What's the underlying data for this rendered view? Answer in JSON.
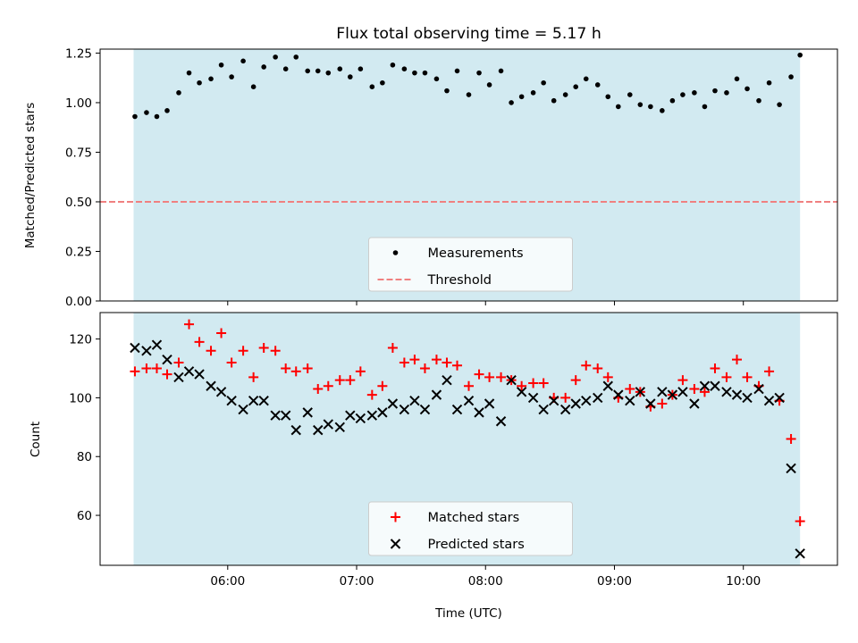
{
  "title": "Flux total observing time = 5.17 h",
  "colors": {
    "observing_span": "#add8e6",
    "measurement": "#000000",
    "threshold": "#f08080",
    "matched": "#ff0000",
    "predicted": "#000000"
  },
  "chart_data": [
    {
      "type": "scatter",
      "ylabel": "Matched/Predicted stars",
      "xlim": [
        5.01,
        10.73
      ],
      "ylim": [
        0,
        1.27
      ],
      "yticks": [
        0.0,
        0.25,
        0.5,
        0.75,
        1.0,
        1.25
      ],
      "ytick_labels": [
        "0.00",
        "0.25",
        "0.50",
        "0.75",
        "1.00",
        "1.25"
      ],
      "observing_span": [
        5.27,
        10.44
      ],
      "threshold": 0.5,
      "legend": {
        "placement": "lower-center",
        "entries": [
          "Measurements",
          "Threshold"
        ]
      },
      "series": [
        {
          "name": "Measurements",
          "marker": "dot",
          "x": [
            5.28,
            5.37,
            5.45,
            5.53,
            5.62,
            5.7,
            5.78,
            5.87,
            5.95,
            6.03,
            6.12,
            6.2,
            6.28,
            6.37,
            6.45,
            6.53,
            6.62,
            6.7,
            6.78,
            6.87,
            6.95,
            7.03,
            7.12,
            7.2,
            7.28,
            7.37,
            7.45,
            7.53,
            7.62,
            7.7,
            7.78,
            7.87,
            7.95,
            8.03,
            8.12,
            8.2,
            8.28,
            8.37,
            8.45,
            8.53,
            8.62,
            8.7,
            8.78,
            8.87,
            8.95,
            9.03,
            9.12,
            9.2,
            9.28,
            9.37,
            9.45,
            9.53,
            9.62,
            9.7,
            9.78,
            9.87,
            9.95,
            10.03,
            10.12,
            10.2,
            10.28,
            10.37,
            10.44
          ],
          "y": [
            0.93,
            0.95,
            0.93,
            0.96,
            1.05,
            1.15,
            1.1,
            1.12,
            1.19,
            1.13,
            1.21,
            1.08,
            1.18,
            1.23,
            1.17,
            1.23,
            1.16,
            1.16,
            1.15,
            1.17,
            1.13,
            1.17,
            1.08,
            1.1,
            1.19,
            1.17,
            1.15,
            1.15,
            1.12,
            1.06,
            1.16,
            1.04,
            1.15,
            1.09,
            1.16,
            1.0,
            1.03,
            1.05,
            1.1,
            1.01,
            1.04,
            1.08,
            1.12,
            1.09,
            1.03,
            0.98,
            1.04,
            0.99,
            0.98,
            0.96,
            1.01,
            1.04,
            1.05,
            0.98,
            1.06,
            1.05,
            1.12,
            1.07,
            1.01,
            1.1,
            0.99,
            1.13,
            1.24
          ]
        }
      ]
    },
    {
      "type": "scatter",
      "xlabel": "Time (UTC)",
      "ylabel": "Count",
      "xlim": [
        5.01,
        10.73
      ],
      "ylim": [
        43,
        129
      ],
      "yticks": [
        60,
        80,
        100,
        120
      ],
      "ytick_labels": [
        "60",
        "80",
        "100",
        "120"
      ],
      "xticks": [
        6,
        7,
        8,
        9,
        10
      ],
      "xtick_labels": [
        "06:00",
        "07:00",
        "08:00",
        "09:00",
        "10:00"
      ],
      "observing_span": [
        5.27,
        10.44
      ],
      "legend": {
        "placement": "lower-center",
        "entries": [
          "Matched stars",
          "Predicted stars"
        ]
      },
      "series": [
        {
          "name": "Matched stars",
          "marker": "plus",
          "x": [
            5.28,
            5.37,
            5.45,
            5.53,
            5.62,
            5.7,
            5.78,
            5.87,
            5.95,
            6.03,
            6.12,
            6.2,
            6.28,
            6.37,
            6.45,
            6.53,
            6.62,
            6.7,
            6.78,
            6.87,
            6.95,
            7.03,
            7.12,
            7.2,
            7.28,
            7.37,
            7.45,
            7.53,
            7.62,
            7.7,
            7.78,
            7.87,
            7.95,
            8.03,
            8.12,
            8.2,
            8.28,
            8.37,
            8.45,
            8.53,
            8.62,
            8.7,
            8.78,
            8.87,
            8.95,
            9.03,
            9.12,
            9.2,
            9.28,
            9.37,
            9.45,
            9.53,
            9.62,
            9.7,
            9.78,
            9.87,
            9.95,
            10.03,
            10.12,
            10.2,
            10.28,
            10.37,
            10.44
          ],
          "y": [
            109,
            110,
            110,
            108,
            112,
            125,
            119,
            116,
            122,
            112,
            116,
            107,
            117,
            116,
            110,
            109,
            110,
            103,
            104,
            106,
            106,
            109,
            101,
            104,
            117,
            112,
            113,
            110,
            113,
            112,
            111,
            104,
            108,
            107,
            107,
            106,
            104,
            105,
            105,
            100,
            100,
            106,
            111,
            110,
            107,
            100,
            103,
            102,
            97,
            98,
            101,
            106,
            103,
            102,
            110,
            107,
            113,
            107,
            104,
            109,
            99,
            86,
            58
          ]
        },
        {
          "name": "Predicted stars",
          "marker": "x",
          "x": [
            5.28,
            5.37,
            5.45,
            5.53,
            5.62,
            5.7,
            5.78,
            5.87,
            5.95,
            6.03,
            6.12,
            6.2,
            6.28,
            6.37,
            6.45,
            6.53,
            6.62,
            6.7,
            6.78,
            6.87,
            6.95,
            7.03,
            7.12,
            7.2,
            7.28,
            7.37,
            7.45,
            7.53,
            7.62,
            7.7,
            7.78,
            7.87,
            7.95,
            8.03,
            8.12,
            8.2,
            8.28,
            8.37,
            8.45,
            8.53,
            8.62,
            8.7,
            8.78,
            8.87,
            8.95,
            9.03,
            9.12,
            9.2,
            9.28,
            9.37,
            9.45,
            9.53,
            9.62,
            9.7,
            9.78,
            9.87,
            9.95,
            10.03,
            10.12,
            10.2,
            10.28,
            10.37,
            10.44
          ],
          "y": [
            117,
            116,
            118,
            113,
            107,
            109,
            108,
            104,
            102,
            99,
            96,
            99,
            99,
            94,
            94,
            89,
            95,
            89,
            91,
            90,
            94,
            93,
            94,
            95,
            98,
            96,
            99,
            96,
            101,
            106,
            96,
            99,
            95,
            98,
            92,
            106,
            102,
            100,
            96,
            99,
            96,
            98,
            99,
            100,
            104,
            101,
            99,
            102,
            98,
            102,
            101,
            102,
            98,
            104,
            104,
            102,
            101,
            100,
            103,
            99,
            100,
            76,
            47
          ]
        }
      ]
    }
  ]
}
